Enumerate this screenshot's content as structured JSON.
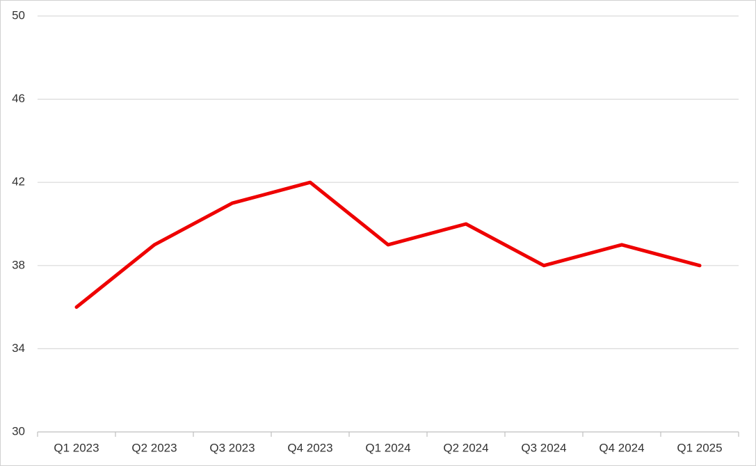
{
  "chart_data": {
    "type": "line",
    "categories": [
      "Q1 2023",
      "Q2 2023",
      "Q3 2023",
      "Q4 2023",
      "Q1 2024",
      "Q2 2024",
      "Q3 2024",
      "Q4 2024",
      "Q1 2025"
    ],
    "values": [
      36,
      39,
      41,
      42,
      39,
      40,
      38,
      39,
      38
    ],
    "color": "#ee0000",
    "ylim": [
      30,
      50
    ],
    "yticks": [
      30,
      34,
      38,
      42,
      46,
      50
    ],
    "grid": true
  }
}
